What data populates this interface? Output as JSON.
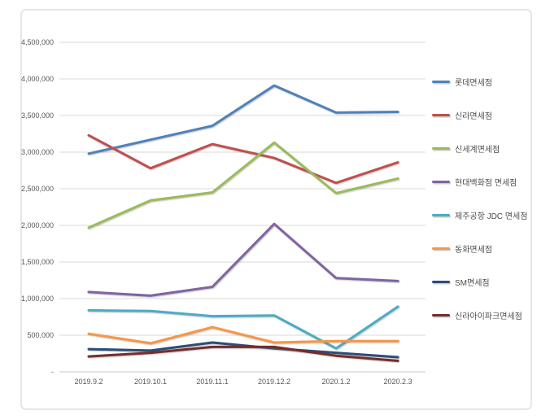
{
  "chart_data": {
    "type": "line",
    "title": "",
    "xlabel": "",
    "ylabel": "",
    "x_categories": [
      "2019.9.2",
      "2019.10.1",
      "2019.11.1",
      "2019.12.2",
      "2020.1.2",
      "2020.2.3"
    ],
    "y_tick_labels": [
      "-",
      "500,000",
      "1,000,000",
      "1,500,000",
      "2,000,000",
      "2,500,000",
      "3,000,000",
      "3,500,000",
      "4,000,000",
      "4,500,000"
    ],
    "y_tick_values": [
      0,
      500000,
      1000000,
      1500000,
      2000000,
      2500000,
      3000000,
      3500000,
      4000000,
      4500000
    ],
    "ylim": [
      0,
      4500000
    ],
    "grid": true,
    "legend_position": "right",
    "series": [
      {
        "name": "롯데면세점",
        "color": "#4F81BD",
        "values": [
          2980000,
          3170000,
          3360000,
          3910000,
          3540000,
          3550000
        ]
      },
      {
        "name": "신라면세점",
        "color": "#C0504D",
        "values": [
          3230000,
          2780000,
          3110000,
          2920000,
          2580000,
          2860000
        ]
      },
      {
        "name": "신세계면세점",
        "color": "#9BBB59",
        "values": [
          1970000,
          2340000,
          2450000,
          3130000,
          2440000,
          2640000
        ]
      },
      {
        "name": "현대백화점 면세점",
        "color": "#8064A2",
        "values": [
          1090000,
          1040000,
          1160000,
          2020000,
          1280000,
          1240000
        ]
      },
      {
        "name": "제주공항 JDC 면세점",
        "color": "#4BACC6",
        "values": [
          840000,
          830000,
          760000,
          770000,
          320000,
          890000
        ]
      },
      {
        "name": "동화면세점",
        "color": "#F79646",
        "values": [
          520000,
          390000,
          610000,
          400000,
          420000,
          420000
        ]
      },
      {
        "name": "SM면세점",
        "color": "#2C4D75",
        "values": [
          310000,
          290000,
          400000,
          320000,
          260000,
          200000
        ]
      },
      {
        "name": "신라아이파크면세점",
        "color": "#772C2A",
        "values": [
          210000,
          260000,
          340000,
          340000,
          220000,
          150000
        ]
      }
    ]
  },
  "colors": {
    "background": "#FFFFFF",
    "frame_border": "#E6E6E6",
    "gridline": "#D9D9D9",
    "axis_line": "#C6C6C6",
    "tick_text": "#595959",
    "legend_text": "#4D4D4D"
  }
}
